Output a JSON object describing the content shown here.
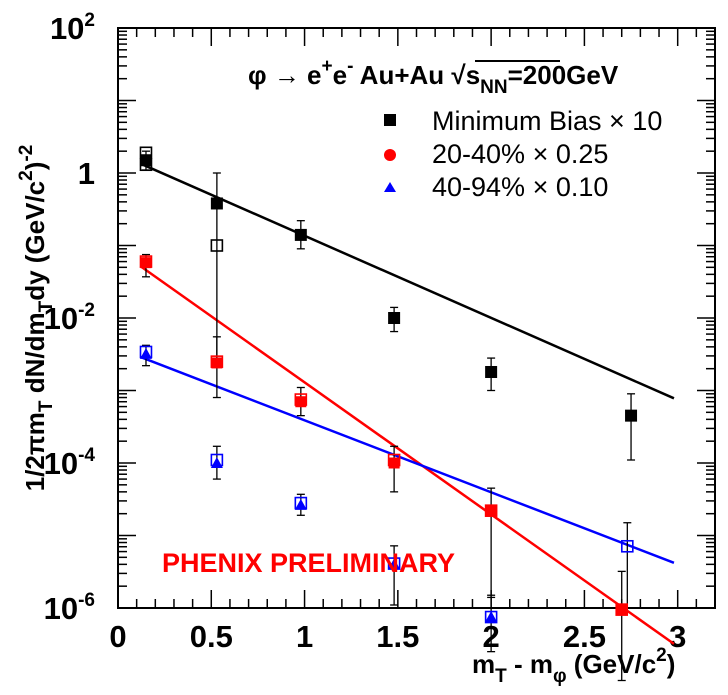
{
  "chart_data": {
    "type": "scatter",
    "yscale": "log",
    "xlim": [
      0,
      3.2
    ],
    "ylim_exp": [
      -6,
      2
    ],
    "x_ticks": [
      {
        "v": 0,
        "label": "0"
      },
      {
        "v": 0.5,
        "label": "0.5"
      },
      {
        "v": 1,
        "label": "1"
      },
      {
        "v": 1.5,
        "label": "1.5"
      },
      {
        "v": 2,
        "label": "2"
      },
      {
        "v": 2.5,
        "label": "2.5"
      },
      {
        "v": 3,
        "label": "3"
      }
    ],
    "y_tick_labels": [
      {
        "exp": 2,
        "base": "10",
        "sup": "2"
      },
      {
        "exp": 0,
        "base": "1",
        "sup": ""
      },
      {
        "exp": -2,
        "base": "10",
        "sup": "-2"
      },
      {
        "exp": -4,
        "base": "10",
        "sup": "-4"
      },
      {
        "exp": -6,
        "base": "10",
        "sup": "-6"
      }
    ],
    "xlabel": {
      "main": "m",
      "sub1": "T",
      "mid": " - m",
      "sub2": "φ",
      "unit": " (GeV/c",
      "sup": "2",
      "close": ")"
    },
    "ylabel": {
      "lead": "1/2πm",
      "sub1": "T",
      "mid": " dN/dm",
      "sub2": "T",
      "tail": "dy (GeV/c",
      "sup1": "2",
      "close": ")",
      "sup2": "-2"
    },
    "header": {
      "phi": "φ → e",
      "sup1": "+",
      "e": "e",
      "sup2": "-",
      "system": " Au+Au ",
      "sqrt": "√",
      "s": "s",
      "sub": "NN",
      "energy": "=200GeV"
    },
    "annotation": {
      "text": "PHENIX PRELIMINARY",
      "color": "#ff0000"
    },
    "series": [
      {
        "name": "Minimum Bias × 10",
        "color": "#000000",
        "marker": "square",
        "points": [
          {
            "x": 0.15,
            "y": 1.5,
            "ylo": 1.1,
            "yhi": 2.0
          },
          {
            "x": 0.53,
            "y": 0.38,
            "ylo": 0.0025,
            "yhi": 1.0
          },
          {
            "x": 0.98,
            "y": 0.14,
            "ylo": 0.09,
            "yhi": 0.22
          },
          {
            "x": 1.48,
            "y": 0.01,
            "ylo": 0.0065,
            "yhi": 0.014
          },
          {
            "x": 2.0,
            "y": 0.0018,
            "ylo": 0.001,
            "yhi": 0.0028
          },
          {
            "x": 2.75,
            "y": 0.00045,
            "ylo": 0.00011,
            "yhi": 0.0009
          }
        ],
        "open_points": [
          {
            "x": 0.15,
            "y": 1.9
          },
          {
            "x": 0.15,
            "y": 1.3
          },
          {
            "x": 0.53,
            "y": 0.1
          }
        ],
        "fit": {
          "x0": 0.12,
          "y0": 1.35,
          "x1": 2.98,
          "y1": 0.00078
        }
      },
      {
        "name": "20-40% × 0.25",
        "color": "#ff0000",
        "marker": "circle",
        "points": [
          {
            "x": 0.15,
            "y": 0.058,
            "ylo": 0.037,
            "yhi": 0.075
          },
          {
            "x": 0.53,
            "y": 0.0024,
            "ylo": 0.0008,
            "yhi": 0.0055
          },
          {
            "x": 0.98,
            "y": 0.0007,
            "ylo": 0.00045,
            "yhi": 0.0011
          },
          {
            "x": 1.48,
            "y": 0.0001,
            "ylo": 4e-05,
            "yhi": 0.00017
          },
          {
            "x": 2.0,
            "y": 2.2e-05,
            "ylo": 1.5e-06,
            "yhi": 4.5e-05
          },
          {
            "x": 2.7,
            "y": 9.5e-07,
            "ylo": 1e-07,
            "yhi": 3.2e-06
          }
        ],
        "open_points": [
          {
            "x": 0.15,
            "y": 0.06
          },
          {
            "x": 0.53,
            "y": 0.0025
          },
          {
            "x": 0.98,
            "y": 0.00075
          },
          {
            "x": 1.48,
            "y": 0.00011
          },
          {
            "x": 2.0,
            "y": 2.2e-05
          },
          {
            "x": 2.7,
            "y": 9.5e-07
          }
        ],
        "fit": {
          "x0": 0.12,
          "y0": 0.052,
          "x1": 2.98,
          "y1": 3.2e-07
        }
      },
      {
        "name": "40-94% × 0.10",
        "color": "#0000ff",
        "marker": "triangle",
        "points": [
          {
            "x": 0.15,
            "y": 0.0032,
            "ylo": 0.0022,
            "yhi": 0.0042
          },
          {
            "x": 0.53,
            "y": 0.0001,
            "ylo": 6e-05,
            "yhi": 0.00017
          },
          {
            "x": 0.98,
            "y": 2.65e-05,
            "ylo": 1.9e-05,
            "yhi": 3.7e-05
          },
          {
            "x": 1.48,
            "y": 4e-06,
            "ylo": 1.1e-06,
            "yhi": 7.2e-06
          },
          {
            "x": 2.0,
            "y": 7.5e-07,
            "ylo": 2.5e-07,
            "yhi": 1.4e-06
          }
        ],
        "open_points": [
          {
            "x": 0.15,
            "y": 0.0034
          },
          {
            "x": 0.53,
            "y": 0.00011
          },
          {
            "x": 0.98,
            "y": 2.8e-05
          },
          {
            "x": 1.48,
            "y": 4.1e-06
          },
          {
            "x": 2.0,
            "y": 7.5e-07
          },
          {
            "x": 2.73,
            "y": 7.1e-06
          }
        ],
        "open_errors": [
          {
            "x": 2.73,
            "ylo": 1e-06,
            "yhi": 1.5e-05
          }
        ],
        "fit": {
          "x0": 0.12,
          "y0": 0.0029,
          "x1": 2.98,
          "y1": 4.2e-06
        }
      }
    ]
  }
}
